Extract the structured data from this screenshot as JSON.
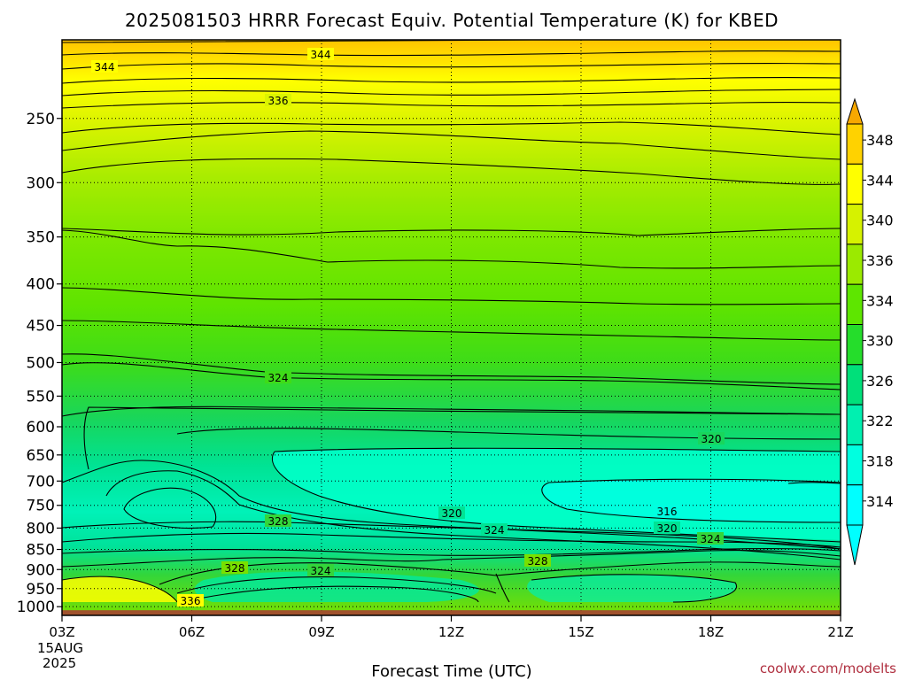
{
  "chart_data": {
    "type": "contour",
    "title": "2025081503 HRRR Forecast Equiv. Potential Temperature (K) for KBED",
    "xlabel": "Forecast Time (UTC)",
    "x_ticks": [
      "03Z",
      "06Z",
      "09Z",
      "12Z",
      "15Z",
      "18Z",
      "21Z"
    ],
    "x_start_date": [
      "15AUG",
      "2025"
    ],
    "y_ticks": [
      250,
      300,
      350,
      400,
      450,
      500,
      550,
      600,
      650,
      700,
      750,
      800,
      850,
      900,
      950,
      1000
    ],
    "y_range_hpa": [
      200,
      1025
    ],
    "contour_interval_k": 2,
    "contour_labels": [
      {
        "value": "344"
      },
      {
        "value": "344"
      },
      {
        "value": "336"
      },
      {
        "value": "324"
      },
      {
        "value": "320"
      },
      {
        "value": "320"
      },
      {
        "value": "316"
      },
      {
        "value": "320"
      },
      {
        "value": "324"
      },
      {
        "value": "324"
      },
      {
        "value": "328"
      },
      {
        "value": "328"
      },
      {
        "value": "324"
      },
      {
        "value": "328"
      },
      {
        "value": "336"
      }
    ],
    "colorbar": {
      "labels": [
        "348",
        "344",
        "340",
        "336",
        "334",
        "330",
        "326",
        "322",
        "318",
        "314"
      ],
      "colors": [
        "#f7a800",
        "#ffd200",
        "#ffff00",
        "#d6f200",
        "#9bea00",
        "#5ee600",
        "#25dd2b",
        "#00e07a",
        "#00f0b0",
        "#00ffe0",
        "#00ffff"
      ]
    },
    "grid": true,
    "ground_color": "#a0522d"
  },
  "credit": "coolwx.com/modelts"
}
